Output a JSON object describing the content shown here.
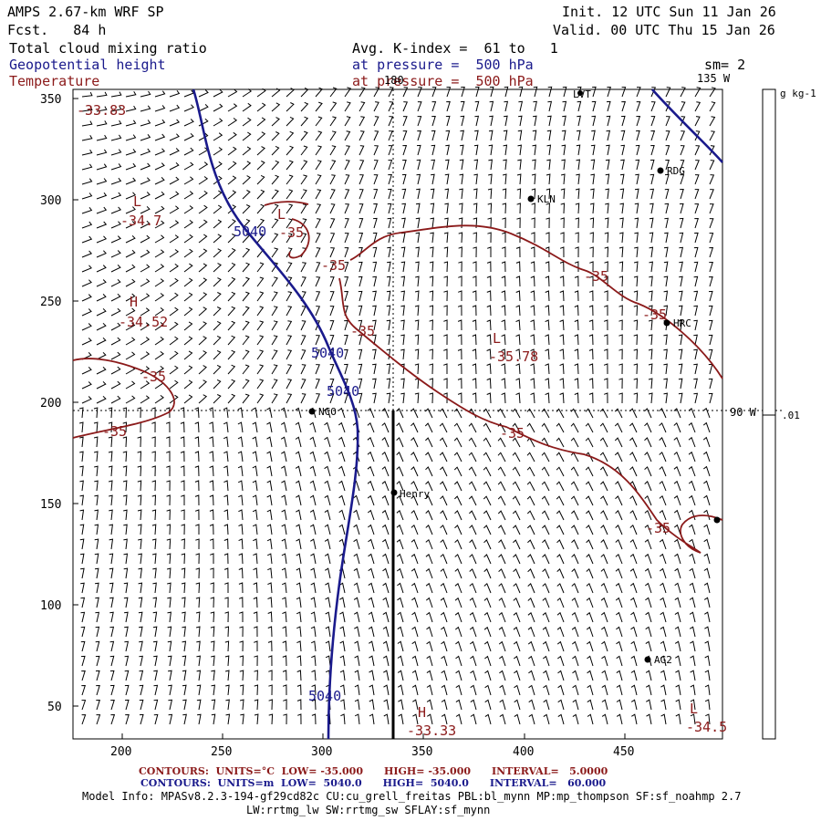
{
  "header": {
    "model": "AMPS 2.67-km WRF SP",
    "forecast": "Fcst.   84 h",
    "init": "Init. 12 UTC Sun 11 Jan 26",
    "valid": "Valid. 00 UTC Thu 15 Jan 26",
    "field1": "Total cloud mixing ratio",
    "field2": "Geopotential height",
    "field3": "Temperature",
    "avg": "Avg. K-index =  61 to   1",
    "pressure1": "at pressure =  500 hPa",
    "pressure2": "at pressure =  500 hPa",
    "smoothing": "sm= 2"
  },
  "map": {
    "x_ticks": [
      "200",
      "250",
      "300",
      "350",
      "400",
      "450"
    ],
    "y_ticks": [
      "50",
      "100",
      "150",
      "200",
      "250",
      "300",
      "350"
    ],
    "meridian_labels": {
      "lon180": "180",
      "lon135": "135 W",
      "lon90": "90 W"
    },
    "stations": [
      {
        "id": "LVT",
        "label": "LVT"
      },
      {
        "id": "RDG",
        "label": "RDG"
      },
      {
        "id": "KLN",
        "label": "KLN"
      },
      {
        "id": "HRC",
        "label": "HRC"
      },
      {
        "id": "NCO",
        "label": "NCO"
      },
      {
        "id": "Henry",
        "label": "Henry"
      },
      {
        "id": "AG2",
        "label": "AG2"
      }
    ],
    "height_labels": [
      "5040",
      "5040",
      "5040",
      "5040"
    ],
    "temp_labels": [
      "-35",
      "-35",
      "-35",
      "-35",
      "-35",
      "-35",
      "-35",
      "-35",
      "-35"
    ],
    "extrema": [
      {
        "type": "L",
        "value": "-33.83"
      },
      {
        "type": "L",
        "value": "-34.7"
      },
      {
        "type": "L",
        "value": "-35.03"
      },
      {
        "type": "H",
        "value": "-34.52"
      },
      {
        "type": "L",
        "value": "-35.78"
      },
      {
        "type": "H",
        "value": "-33.33"
      },
      {
        "type": "L",
        "value": "-34.5"
      }
    ]
  },
  "colorbar": {
    "unit": "g kg-1",
    "tick": ".01"
  },
  "footer": {
    "temp_contours": "CONTOURS:  UNITS=°C  LOW= -35.000      HIGH= -35.000      INTERVAL=   5.0000",
    "height_contours": "CONTOURS:  UNITS=m  LOW=  5040.0      HIGH=  5040.0      INTERVAL=   60.000",
    "model_info_1": "Model Info: MPASv8.2.3-194-gf29cd82c CU:cu_grell_freitas PBL:bl_mynn MP:mp_thompson SF:sf_noahmp 2.7",
    "model_info_2": "LW:rrtmg_lw SW:rrtmg_sw SFLAY:sf_mynn"
  },
  "colors": {
    "height": "#1a1a8c",
    "temp": "#8b1a1a",
    "ink": "#000000"
  }
}
